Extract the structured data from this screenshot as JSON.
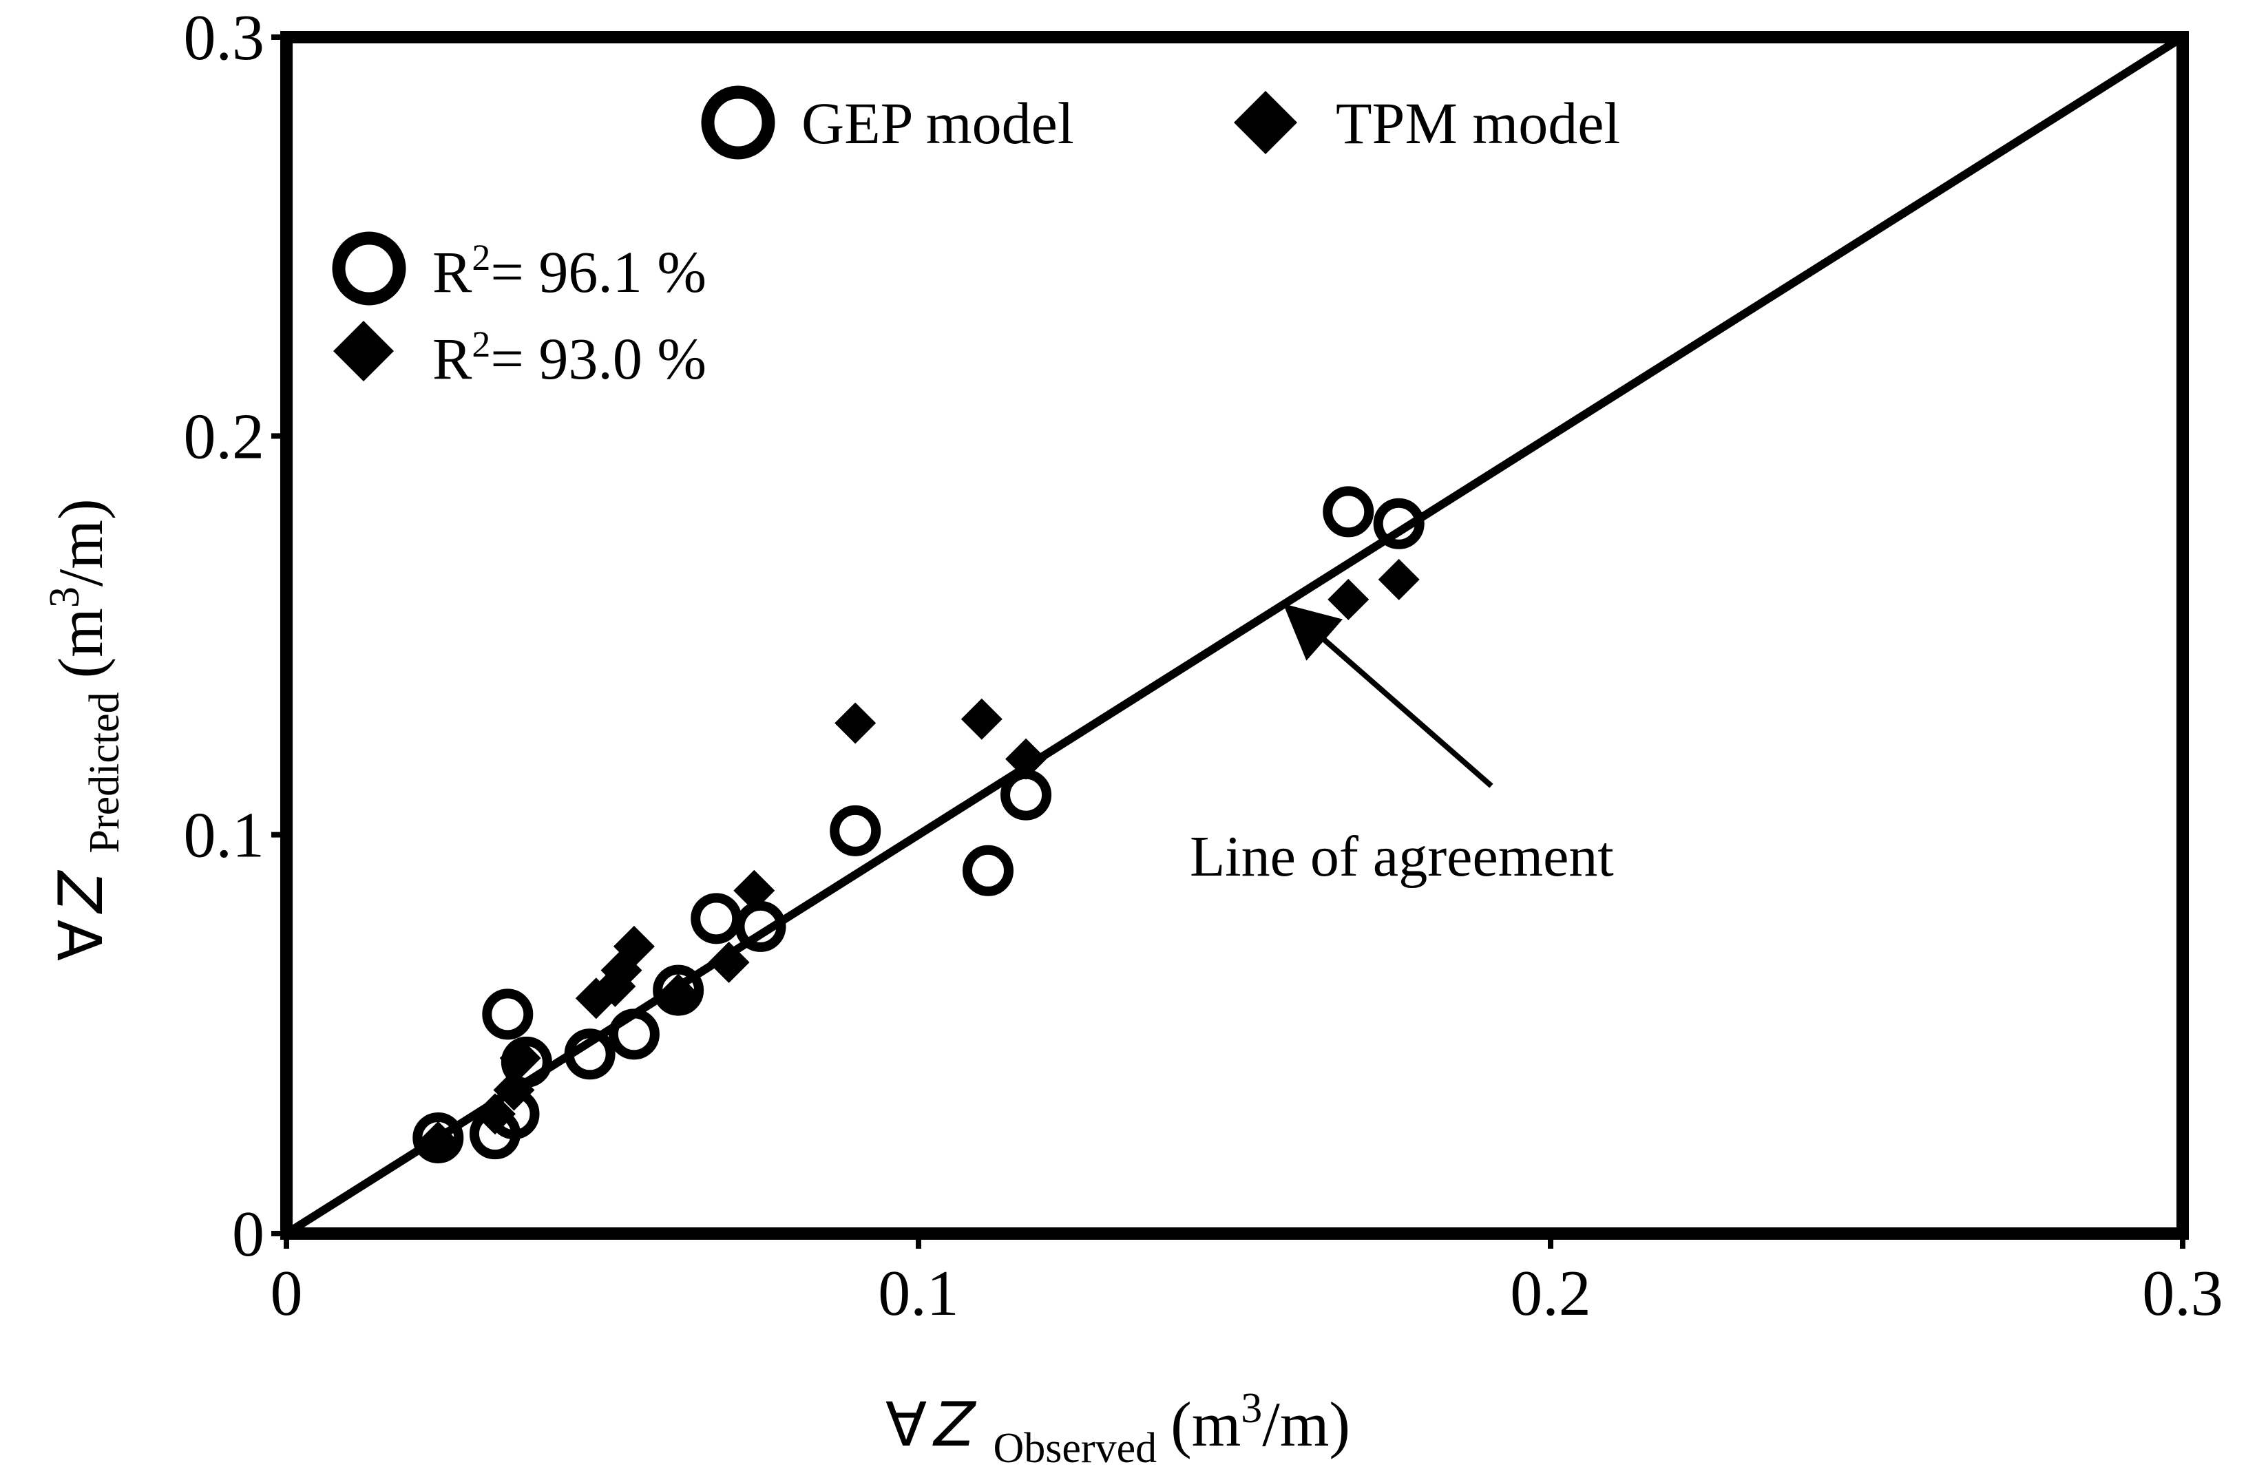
{
  "chart_data": {
    "type": "scatter",
    "xlim": [
      0,
      0.3
    ],
    "ylim": [
      0,
      0.3
    ],
    "x_ticks": [
      "0",
      "0.1",
      "0.2",
      "0.3"
    ],
    "y_ticks": [
      "0",
      "0.1",
      "0.2",
      "0.3"
    ],
    "xlabel": {
      "symbol": "∀",
      "var": "Z",
      "sub": "Observed",
      "unit_open": "(m",
      "unit_sup": "3",
      "unit_close": "/m)"
    },
    "ylabel": {
      "symbol": "∀",
      "var": "Z",
      "sub": "Predicted",
      "unit_open": "(m",
      "unit_sup": "3",
      "unit_close": "/m)"
    },
    "legend": [
      {
        "name": "GEP model",
        "marker": "open-circle"
      },
      {
        "name": "TPM model",
        "marker": "filled-diamond"
      }
    ],
    "stats": [
      {
        "marker": "open-circle",
        "r_text": "R",
        "r_sup": "2",
        "value": "= 96.1 %"
      },
      {
        "marker": "filled-diamond",
        "r_text": "R",
        "r_sup": "2",
        "value": "= 93.0 %"
      }
    ],
    "reference_line": {
      "label": "Line of agreement",
      "from": [
        0,
        0
      ],
      "to": [
        0.3,
        0.3
      ],
      "arrow_to": [
        0.159,
        0.159
      ],
      "label_at": [
        0.183,
        0.095
      ]
    },
    "series": [
      {
        "name": "GEP model",
        "marker": "open-circle",
        "points": [
          [
            0.024,
            0.024
          ],
          [
            0.033,
            0.025
          ],
          [
            0.035,
            0.055
          ],
          [
            0.036,
            0.03
          ],
          [
            0.038,
            0.043
          ],
          [
            0.048,
            0.045
          ],
          [
            0.055,
            0.05
          ],
          [
            0.062,
            0.061
          ],
          [
            0.068,
            0.079
          ],
          [
            0.075,
            0.077
          ],
          [
            0.09,
            0.101
          ],
          [
            0.111,
            0.091
          ],
          [
            0.117,
            0.11
          ],
          [
            0.168,
            0.181
          ],
          [
            0.176,
            0.178
          ]
        ]
      },
      {
        "name": "TPM model",
        "marker": "filled-diamond",
        "points": [
          [
            0.024,
            0.023
          ],
          [
            0.033,
            0.03
          ],
          [
            0.036,
            0.036
          ],
          [
            0.037,
            0.044
          ],
          [
            0.049,
            0.059
          ],
          [
            0.052,
            0.062
          ],
          [
            0.053,
            0.066
          ],
          [
            0.055,
            0.072
          ],
          [
            0.062,
            0.06
          ],
          [
            0.07,
            0.068
          ],
          [
            0.074,
            0.086
          ],
          [
            0.09,
            0.128
          ],
          [
            0.11,
            0.129
          ],
          [
            0.117,
            0.119
          ],
          [
            0.168,
            0.159
          ],
          [
            0.176,
            0.164
          ]
        ]
      }
    ]
  }
}
